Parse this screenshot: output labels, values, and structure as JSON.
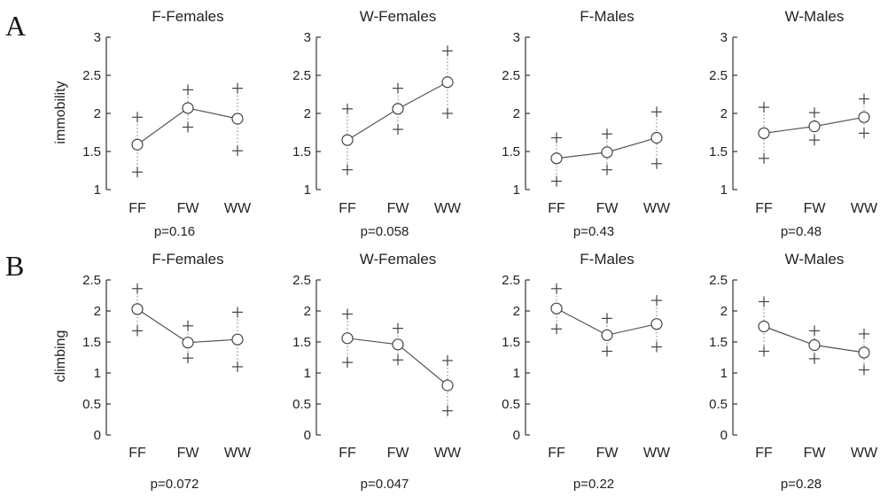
{
  "rows": [
    {
      "letter": "A",
      "ylabel": "immobility",
      "ylim": [
        1,
        3
      ],
      "yticks": [
        "1",
        "1.5",
        "2",
        "2.5",
        "3"
      ],
      "yticks_num": [
        1,
        1.5,
        2,
        2.5,
        3
      ]
    },
    {
      "letter": "B",
      "ylabel": "climbing",
      "ylim": [
        0,
        2.5
      ],
      "yticks": [
        "0",
        "0.5",
        "1",
        "1.5",
        "2",
        "2.5"
      ],
      "yticks_num": [
        0,
        0.5,
        1,
        1.5,
        2,
        2.5
      ]
    }
  ],
  "chart_data": [
    {
      "type": "line",
      "row": 0,
      "title": "F-Females",
      "categories": [
        "FF",
        "FW",
        "WW"
      ],
      "mean": [
        1.59,
        2.07,
        1.93
      ],
      "upper": [
        1.95,
        2.31,
        2.33
      ],
      "lower": [
        1.23,
        1.82,
        1.51
      ],
      "p": "p=0.16"
    },
    {
      "type": "line",
      "row": 0,
      "title": "W-Females",
      "categories": [
        "FF",
        "FW",
        "WW"
      ],
      "mean": [
        1.65,
        2.06,
        2.41
      ],
      "upper": [
        2.06,
        2.33,
        2.82
      ],
      "lower": [
        1.26,
        1.79,
        2.0
      ],
      "p": "p=0.058"
    },
    {
      "type": "line",
      "row": 0,
      "title": "F-Males",
      "categories": [
        "FF",
        "FW",
        "WW"
      ],
      "mean": [
        1.41,
        1.49,
        1.68
      ],
      "upper": [
        1.68,
        1.73,
        2.02
      ],
      "lower": [
        1.11,
        1.26,
        1.34
      ],
      "p": "p=0.43"
    },
    {
      "type": "line",
      "row": 0,
      "title": "W-Males",
      "categories": [
        "FF",
        "FW",
        "WW"
      ],
      "mean": [
        1.74,
        1.83,
        1.95
      ],
      "upper": [
        2.08,
        2.01,
        2.19
      ],
      "lower": [
        1.41,
        1.65,
        1.74
      ],
      "p": "p=0.48"
    },
    {
      "type": "line",
      "row": 1,
      "title": "F-Females",
      "categories": [
        "FF",
        "FW",
        "WW"
      ],
      "mean": [
        2.03,
        1.49,
        1.54
      ],
      "upper": [
        2.36,
        1.76,
        1.98
      ],
      "lower": [
        1.68,
        1.24,
        1.1
      ],
      "p": "p=0.072"
    },
    {
      "type": "line",
      "row": 1,
      "title": "W-Females",
      "categories": [
        "FF",
        "FW",
        "WW"
      ],
      "mean": [
        1.56,
        1.46,
        0.8
      ],
      "upper": [
        1.95,
        1.72,
        1.2
      ],
      "lower": [
        1.17,
        1.21,
        0.39
      ],
      "p": "p=0.047"
    },
    {
      "type": "line",
      "row": 1,
      "title": "F-Males",
      "categories": [
        "FF",
        "FW",
        "WW"
      ],
      "mean": [
        2.04,
        1.61,
        1.79
      ],
      "upper": [
        2.36,
        1.88,
        2.17
      ],
      "lower": [
        1.71,
        1.35,
        1.42
      ],
      "p": "p=0.22"
    },
    {
      "type": "line",
      "row": 1,
      "title": "W-Males",
      "categories": [
        "FF",
        "FW",
        "WW"
      ],
      "mean": [
        1.75,
        1.45,
        1.33
      ],
      "upper": [
        2.15,
        1.68,
        1.63
      ],
      "lower": [
        1.35,
        1.23,
        1.05
      ],
      "p": "p=0.28"
    }
  ]
}
